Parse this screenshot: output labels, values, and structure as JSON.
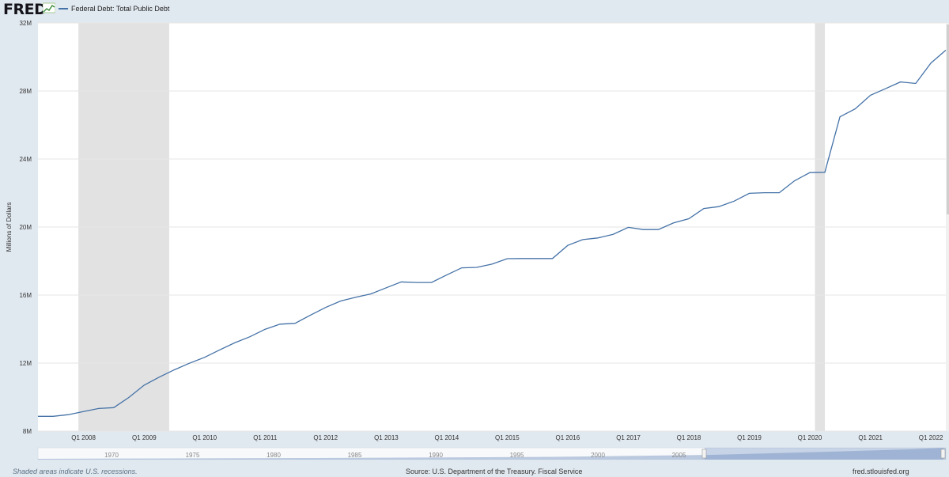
{
  "header": {
    "logo": "FRED",
    "legend_label": "Federal Debt: Total Public Debt",
    "legend_color": "#4572a7"
  },
  "footer": {
    "recession_note": "Shaded areas indicate U.S. recessions.",
    "source": "Source: U.S. Department of the Treasury. Fiscal Service",
    "site": "fred.stlouisfed.org"
  },
  "chart_data": {
    "type": "line",
    "title": "",
    "xlabel": "",
    "ylabel": "Millions of Dollars",
    "ylim": [
      8000000,
      32000000
    ],
    "xlim": [
      "2007-04-01",
      "2022-04-01"
    ],
    "grid": true,
    "legend": "top-left",
    "line_color": "#4572a7",
    "y_ticks": [
      {
        "v": 8000000,
        "label": "8M"
      },
      {
        "v": 12000000,
        "label": "12M"
      },
      {
        "v": 16000000,
        "label": "16M"
      },
      {
        "v": 20000000,
        "label": "20M"
      },
      {
        "v": 24000000,
        "label": "24M"
      },
      {
        "v": 28000000,
        "label": "28M"
      },
      {
        "v": 32000000,
        "label": "32M"
      }
    ],
    "x_ticks": [
      {
        "date": "2008-01-01",
        "label": "Q1 2008"
      },
      {
        "date": "2009-01-01",
        "label": "Q1 2009"
      },
      {
        "date": "2010-01-01",
        "label": "Q1 2010"
      },
      {
        "date": "2011-01-01",
        "label": "Q1 2011"
      },
      {
        "date": "2012-01-01",
        "label": "Q1 2012"
      },
      {
        "date": "2013-01-01",
        "label": "Q1 2013"
      },
      {
        "date": "2014-01-01",
        "label": "Q1 2014"
      },
      {
        "date": "2015-01-01",
        "label": "Q1 2015"
      },
      {
        "date": "2016-01-01",
        "label": "Q1 2016"
      },
      {
        "date": "2017-01-01",
        "label": "Q1 2017"
      },
      {
        "date": "2018-01-01",
        "label": "Q1 2018"
      },
      {
        "date": "2019-01-01",
        "label": "Q1 2019"
      },
      {
        "date": "2020-01-01",
        "label": "Q1 2020"
      },
      {
        "date": "2021-01-01",
        "label": "Q1 2021"
      },
      {
        "date": "2022-01-01",
        "label": "Q1 2022"
      }
    ],
    "recessions": [
      {
        "start": "2007-12-01",
        "end": "2009-06-01"
      },
      {
        "start": "2020-02-01",
        "end": "2020-04-01"
      }
    ],
    "series": [
      {
        "name": "Federal Debt: Total Public Debt",
        "x": [
          "2007-04-01",
          "2007-07-01",
          "2007-10-01",
          "2008-01-01",
          "2008-04-01",
          "2008-07-01",
          "2008-10-01",
          "2009-01-01",
          "2009-04-01",
          "2009-07-01",
          "2009-10-01",
          "2010-01-01",
          "2010-04-01",
          "2010-07-01",
          "2010-10-01",
          "2011-01-01",
          "2011-04-01",
          "2011-07-01",
          "2011-10-01",
          "2012-01-01",
          "2012-04-01",
          "2012-07-01",
          "2012-10-01",
          "2013-01-01",
          "2013-04-01",
          "2013-07-01",
          "2013-10-01",
          "2014-01-01",
          "2014-04-01",
          "2014-07-01",
          "2014-10-01",
          "2015-01-01",
          "2015-04-01",
          "2015-07-01",
          "2015-10-01",
          "2016-01-01",
          "2016-04-01",
          "2016-07-01",
          "2016-10-01",
          "2017-01-01",
          "2017-04-01",
          "2017-07-01",
          "2017-10-01",
          "2018-01-01",
          "2018-04-01",
          "2018-07-01",
          "2018-10-01",
          "2019-01-01",
          "2019-04-01",
          "2019-07-01",
          "2019-10-01",
          "2020-01-01",
          "2020-04-01",
          "2020-07-01",
          "2020-10-01",
          "2021-01-01",
          "2021-04-01",
          "2021-07-01",
          "2021-10-01",
          "2022-01-01",
          "2022-04-01"
        ],
        "values": [
          8868000,
          8868000,
          8968000,
          9150000,
          9330000,
          9380000,
          9980000,
          10700000,
          11170000,
          11600000,
          11990000,
          12340000,
          12770000,
          13190000,
          13550000,
          13990000,
          14290000,
          14340000,
          14820000,
          15270000,
          15650000,
          15870000,
          16070000,
          16430000,
          16770000,
          16740000,
          16740000,
          17180000,
          17600000,
          17630000,
          17820000,
          18140000,
          18150000,
          18150000,
          18150000,
          18920000,
          19260000,
          19360000,
          19570000,
          19980000,
          19850000,
          19850000,
          20240000,
          20490000,
          21090000,
          21200000,
          21520000,
          21980000,
          22020000,
          22020000,
          22720000,
          23200000,
          23220000,
          26480000,
          26950000,
          27750000,
          28130000,
          28530000,
          28440000,
          29640000,
          30400000
        ]
      }
    ]
  },
  "navigator": {
    "labels": [
      "1970",
      "1975",
      "1980",
      "1985",
      "1990",
      "1995",
      "2000",
      "2005"
    ]
  }
}
